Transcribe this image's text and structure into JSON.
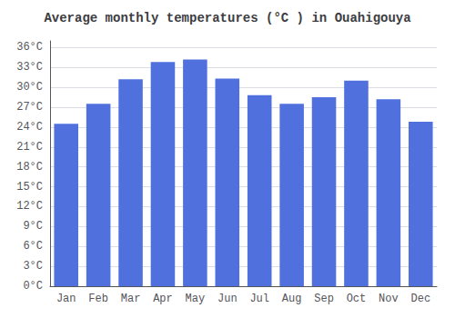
{
  "chart_data": {
    "type": "bar",
    "title": "Average monthly temperatures (°C ) in Ouahigouya",
    "categories": [
      "Jan",
      "Feb",
      "Mar",
      "Apr",
      "May",
      "Jun",
      "Jul",
      "Aug",
      "Sep",
      "Oct",
      "Nov",
      "Dec"
    ],
    "values": [
      24.5,
      27.5,
      31.2,
      33.8,
      34.2,
      31.3,
      28.8,
      27.5,
      28.5,
      31.0,
      28.2,
      24.8
    ],
    "ylim": [
      0,
      37
    ],
    "yticks": [
      {
        "value": 0,
        "label": "0°C"
      },
      {
        "value": 3,
        "label": "3°C"
      },
      {
        "value": 6,
        "label": "6°C"
      },
      {
        "value": 9,
        "label": "9°C"
      },
      {
        "value": 12,
        "label": "12°C"
      },
      {
        "value": 15,
        "label": "15°C"
      },
      {
        "value": 18,
        "label": "18°C"
      },
      {
        "value": 21,
        "label": "21°C"
      },
      {
        "value": 24,
        "label": "24°C"
      },
      {
        "value": 27,
        "label": "27°C"
      },
      {
        "value": 30,
        "label": "30°C"
      },
      {
        "value": 33,
        "label": "33°C"
      },
      {
        "value": 36,
        "label": "36°C"
      }
    ],
    "grid": true
  }
}
